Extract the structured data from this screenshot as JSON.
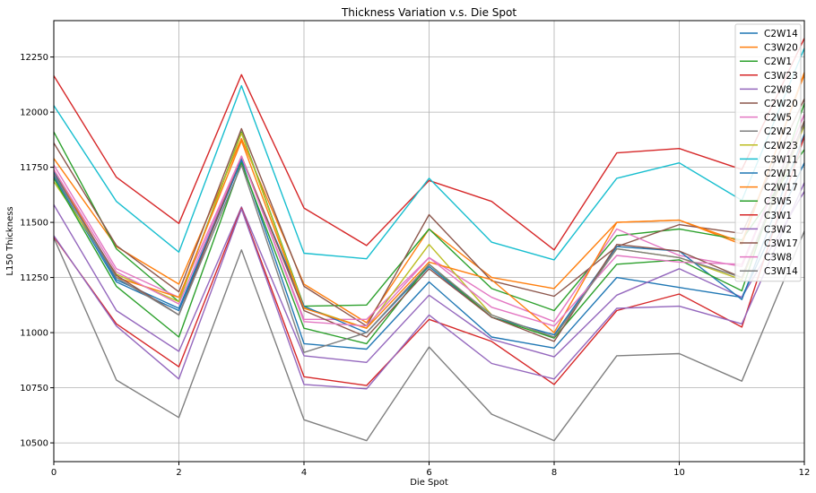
{
  "chart_data": {
    "type": "line",
    "title": "Thickness Variation v.s. Die Spot",
    "xlabel": "Die Spot",
    "ylabel": "L150 Thickness",
    "xlim": [
      0,
      12
    ],
    "ylim": [
      10415,
      12415
    ],
    "xticks": [
      0,
      2,
      4,
      6,
      8,
      10,
      12
    ],
    "yticks": [
      10500,
      10750,
      11000,
      11250,
      11500,
      11750,
      12000,
      12250
    ],
    "grid": true,
    "legend_position": "top-right",
    "x": [
      0,
      1,
      2,
      3,
      4,
      5,
      6,
      7,
      8,
      9,
      10,
      11,
      12
    ],
    "series": [
      {
        "name": "C2W14",
        "color": "#1f77b4",
        "values": [
          11710,
          11230,
          11100,
          11780,
          10950,
          10925,
          11230,
          10980,
          10930,
          11250,
          11205,
          11160,
          11770
        ]
      },
      {
        "name": "C3W20",
        "color": "#ff7f0e",
        "values": [
          11790,
          11390,
          11220,
          11880,
          11220,
          11045,
          11470,
          11250,
          11200,
          11500,
          11510,
          11400,
          12180
        ]
      },
      {
        "name": "C2W1",
        "color": "#2ca02c",
        "values": [
          11910,
          11380,
          11140,
          11910,
          11120,
          11125,
          11470,
          11200,
          11100,
          11440,
          11470,
          11420,
          11830
        ]
      },
      {
        "name": "C3W23",
        "color": "#d62728",
        "values": [
          12165,
          11705,
          11495,
          12170,
          11565,
          11395,
          11690,
          11595,
          11375,
          11815,
          11835,
          11740,
          12335
        ]
      },
      {
        "name": "C2W8",
        "color": "#9467bd",
        "values": [
          11580,
          11100,
          10915,
          11570,
          10895,
          10865,
          11170,
          10970,
          10890,
          11170,
          11290,
          11160,
          11640
        ]
      },
      {
        "name": "C2W20",
        "color": "#8c564b",
        "values": [
          11860,
          11395,
          11185,
          11925,
          11210,
          11030,
          11535,
          11235,
          11165,
          11390,
          11490,
          11450,
          12060
        ]
      },
      {
        "name": "C2W5",
        "color": "#e377c2",
        "values": [
          11760,
          11290,
          11160,
          11800,
          11060,
          11060,
          11340,
          11160,
          11050,
          11470,
          11350,
          11300,
          11990
        ]
      },
      {
        "name": "C2W2",
        "color": "#7f7f7f",
        "values": [
          11430,
          10785,
          10615,
          11375,
          10605,
          10510,
          10935,
          10630,
          10510,
          10895,
          10905,
          10780,
          11460
        ]
      },
      {
        "name": "C2W23",
        "color": "#bcbd22",
        "values": [
          11685,
          11265,
          11140,
          11905,
          11115,
          11020,
          11400,
          11080,
          10980,
          11380,
          11340,
          11240,
          11940
        ]
      },
      {
        "name": "C3W11",
        "color": "#17becf",
        "values": [
          12030,
          11595,
          11365,
          12120,
          11360,
          11335,
          11700,
          11410,
          11330,
          11700,
          11770,
          11600,
          12290
        ]
      },
      {
        "name": "C2W11",
        "color": "#1f77b4",
        "values": [
          11730,
          11240,
          11110,
          11790,
          11120,
          11000,
          11300,
          11070,
          10990,
          11390,
          11370,
          11150,
          11900
        ]
      },
      {
        "name": "C2W17",
        "color": "#ff7f0e",
        "values": [
          11740,
          11250,
          11160,
          11870,
          11110,
          11020,
          11320,
          11240,
          11000,
          11500,
          11510,
          11410,
          12170
        ]
      },
      {
        "name": "C3W5",
        "color": "#2ca02c",
        "values": [
          11700,
          11210,
          10980,
          11770,
          11020,
          10950,
          11310,
          11070,
          10975,
          11310,
          11330,
          11190,
          12040
        ]
      },
      {
        "name": "C3W1",
        "color": "#d62728",
        "values": [
          11435,
          11040,
          10845,
          11565,
          10800,
          10760,
          11060,
          10960,
          10765,
          11100,
          11175,
          11025,
          11890
        ]
      },
      {
        "name": "C3W2",
        "color": "#9467bd",
        "values": [
          11440,
          11030,
          10790,
          11560,
          10765,
          10745,
          11080,
          10860,
          10790,
          11110,
          11120,
          11040,
          11680
        ]
      },
      {
        "name": "C3W17",
        "color": "#8c564b",
        "values": [
          11720,
          11260,
          11080,
          11800,
          11100,
          10980,
          11290,
          11070,
          10960,
          11400,
          11370,
          11250,
          11960
        ]
      },
      {
        "name": "C3W8",
        "color": "#e377c2",
        "values": [
          11740,
          11275,
          11130,
          11800,
          11050,
          11030,
          11340,
          11115,
          11030,
          11350,
          11320,
          11310,
          11990
        ]
      },
      {
        "name": "C3W14",
        "color": "#7f7f7f",
        "values": [
          11720,
          11250,
          11080,
          11760,
          10910,
          11000,
          11310,
          11080,
          10980,
          11380,
          11340,
          11250,
          11950
        ]
      }
    ]
  }
}
